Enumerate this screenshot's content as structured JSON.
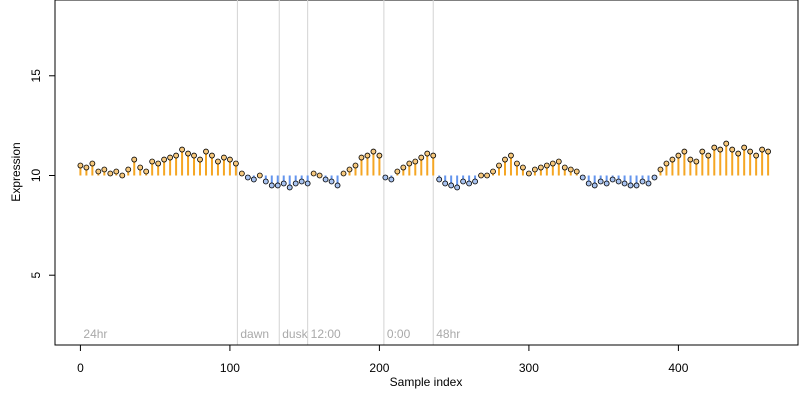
{
  "chart_data": {
    "type": "scatter",
    "title": "",
    "xlabel": "Sample index",
    "ylabel": "Expression",
    "xlim": [
      -17,
      480
    ],
    "ylim": [
      1.5,
      18.8
    ],
    "x_ticks": [
      0,
      100,
      200,
      300,
      400
    ],
    "y_ticks": [
      5,
      10,
      15
    ],
    "grid": false,
    "legend": "none",
    "baseline": 10,
    "colors": {
      "above": "#f5a623",
      "below": "#6495ed",
      "point_fill_above": "#f7c97e",
      "point_fill_below": "#a8c3f0",
      "point_stroke": "#000000",
      "divider": "#d3d3d3",
      "segment_label": "#a9a9a9"
    },
    "segments": [
      {
        "label": "24hr",
        "start": 0
      },
      {
        "label": "dawn",
        "start": 105
      },
      {
        "label": "dusk",
        "start": 133
      },
      {
        "label": "12:00",
        "start": 152
      },
      {
        "label": "0:00",
        "start": 203
      },
      {
        "label": "48hr",
        "start": 236
      }
    ],
    "series": [
      {
        "x": [
          0,
          4,
          8,
          12,
          16,
          20,
          24,
          28,
          32,
          36,
          40,
          44,
          48,
          52,
          56,
          60,
          64,
          68,
          72,
          76,
          80,
          84,
          88,
          92,
          96,
          100,
          104,
          108,
          112,
          116,
          120,
          124,
          128,
          132,
          136,
          140,
          144,
          148,
          152,
          156,
          160,
          164,
          168,
          172,
          176,
          180,
          184,
          188,
          192,
          196,
          200,
          204,
          208,
          212,
          216,
          220,
          224,
          228,
          232,
          236,
          240,
          244,
          248,
          252,
          256,
          260,
          264,
          268,
          272,
          276,
          280,
          284,
          288,
          292,
          296,
          300,
          304,
          308,
          312,
          316,
          320,
          324,
          328,
          332,
          336,
          340,
          344,
          348,
          352,
          356,
          360,
          364,
          368,
          372,
          376,
          380,
          384,
          388,
          392,
          396,
          400,
          404,
          408,
          412,
          416,
          420,
          424,
          428,
          432,
          436,
          440,
          444,
          448,
          452,
          456,
          460
        ],
        "y": [
          10.5,
          10.4,
          10.6,
          10.2,
          10.3,
          10.1,
          10.2,
          10.0,
          10.3,
          10.8,
          10.4,
          10.2,
          10.7,
          10.6,
          10.8,
          10.9,
          11.0,
          11.3,
          11.1,
          11.0,
          10.8,
          11.2,
          11.0,
          10.7,
          10.9,
          10.8,
          10.6,
          10.1,
          9.9,
          9.8,
          10.0,
          9.7,
          9.5,
          9.5,
          9.6,
          9.4,
          9.6,
          9.7,
          9.6,
          10.1,
          10.0,
          9.8,
          9.7,
          9.5,
          10.1,
          10.3,
          10.5,
          10.9,
          11.0,
          11.2,
          11.0,
          9.9,
          9.8,
          10.2,
          10.4,
          10.6,
          10.7,
          10.9,
          11.1,
          11.0,
          9.8,
          9.6,
          9.5,
          9.4,
          9.7,
          9.6,
          9.7,
          10.0,
          10.0,
          10.2,
          10.5,
          10.8,
          11.0,
          10.6,
          10.4,
          10.1,
          10.3,
          10.4,
          10.5,
          10.6,
          10.7,
          10.4,
          10.3,
          10.2,
          9.9,
          9.6,
          9.5,
          9.7,
          9.6,
          9.8,
          9.7,
          9.6,
          9.5,
          9.5,
          9.7,
          9.6,
          9.9,
          10.3,
          10.6,
          10.8,
          11.0,
          11.2,
          10.8,
          10.7,
          11.2,
          11.0,
          11.4,
          11.3,
          11.6,
          11.3,
          11.1,
          11.4,
          11.2,
          11.0,
          11.3,
          11.2
        ]
      }
    ]
  }
}
